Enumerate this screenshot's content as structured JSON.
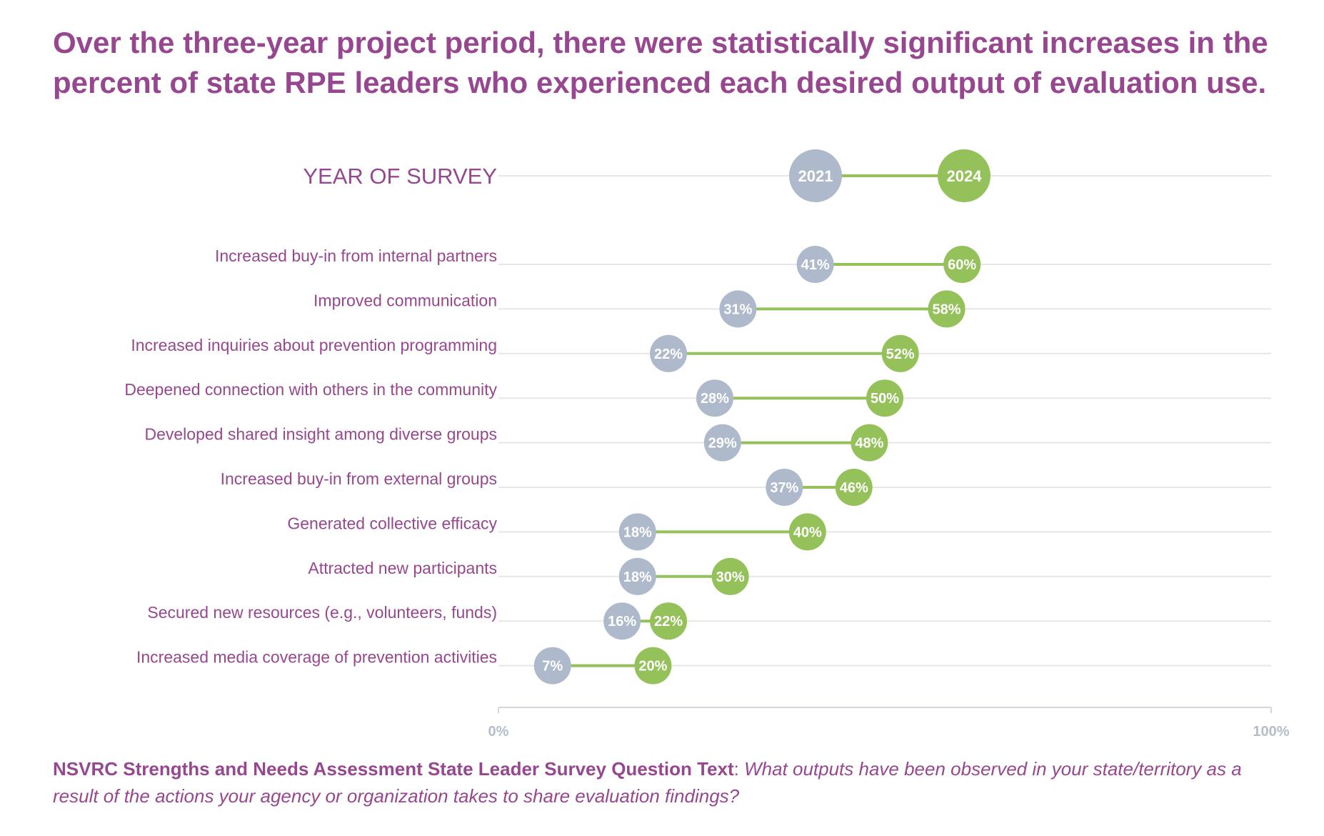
{
  "title": "Over the three-year project period, there were statistically significant increases in the percent of state RPE leaders who experienced each desired output of evaluation use.",
  "chart_data": {
    "type": "dumbbell",
    "legend_title": "YEAR OF SURVEY",
    "series": [
      {
        "name": "2021",
        "color": "#aebacb"
      },
      {
        "name": "2024",
        "color": "#94c159"
      }
    ],
    "connector_color": "#94c159",
    "categories": [
      "Increased buy-in from internal partners",
      "Improved communication",
      "Increased inquiries about prevention programming",
      "Deepened connection with others in the community",
      "Developed shared insight among diverse groups",
      "Increased buy-in from external groups",
      "Generated collective efficacy",
      "Attracted new participants",
      "Secured new resources (e.g., volunteers, funds)",
      "Increased media coverage of prevention activities"
    ],
    "values_2021": [
      41,
      31,
      22,
      28,
      29,
      37,
      18,
      18,
      16,
      7
    ],
    "values_2024": [
      60,
      58,
      52,
      50,
      48,
      46,
      40,
      30,
      22,
      20
    ],
    "labels_2021": [
      "41%",
      "31%",
      "22%",
      "28%",
      "29%",
      "37%",
      "18%",
      "18%",
      "16%",
      "7%"
    ],
    "labels_2024": [
      "60%",
      "58%",
      "52%",
      "50%",
      "48%",
      "46%",
      "40%",
      "30%",
      "22%",
      "20%"
    ],
    "xlim": [
      0,
      100
    ],
    "x_ticks": [
      "0%",
      "100%"
    ]
  },
  "footer": {
    "source_label": "NSVRC Strengths and Needs Assessment State Leader Survey Question Text",
    "separator": ": ",
    "question": "What outputs have been observed in your state/territory as a result of the actions your agency or organization takes to share evaluation findings?"
  }
}
